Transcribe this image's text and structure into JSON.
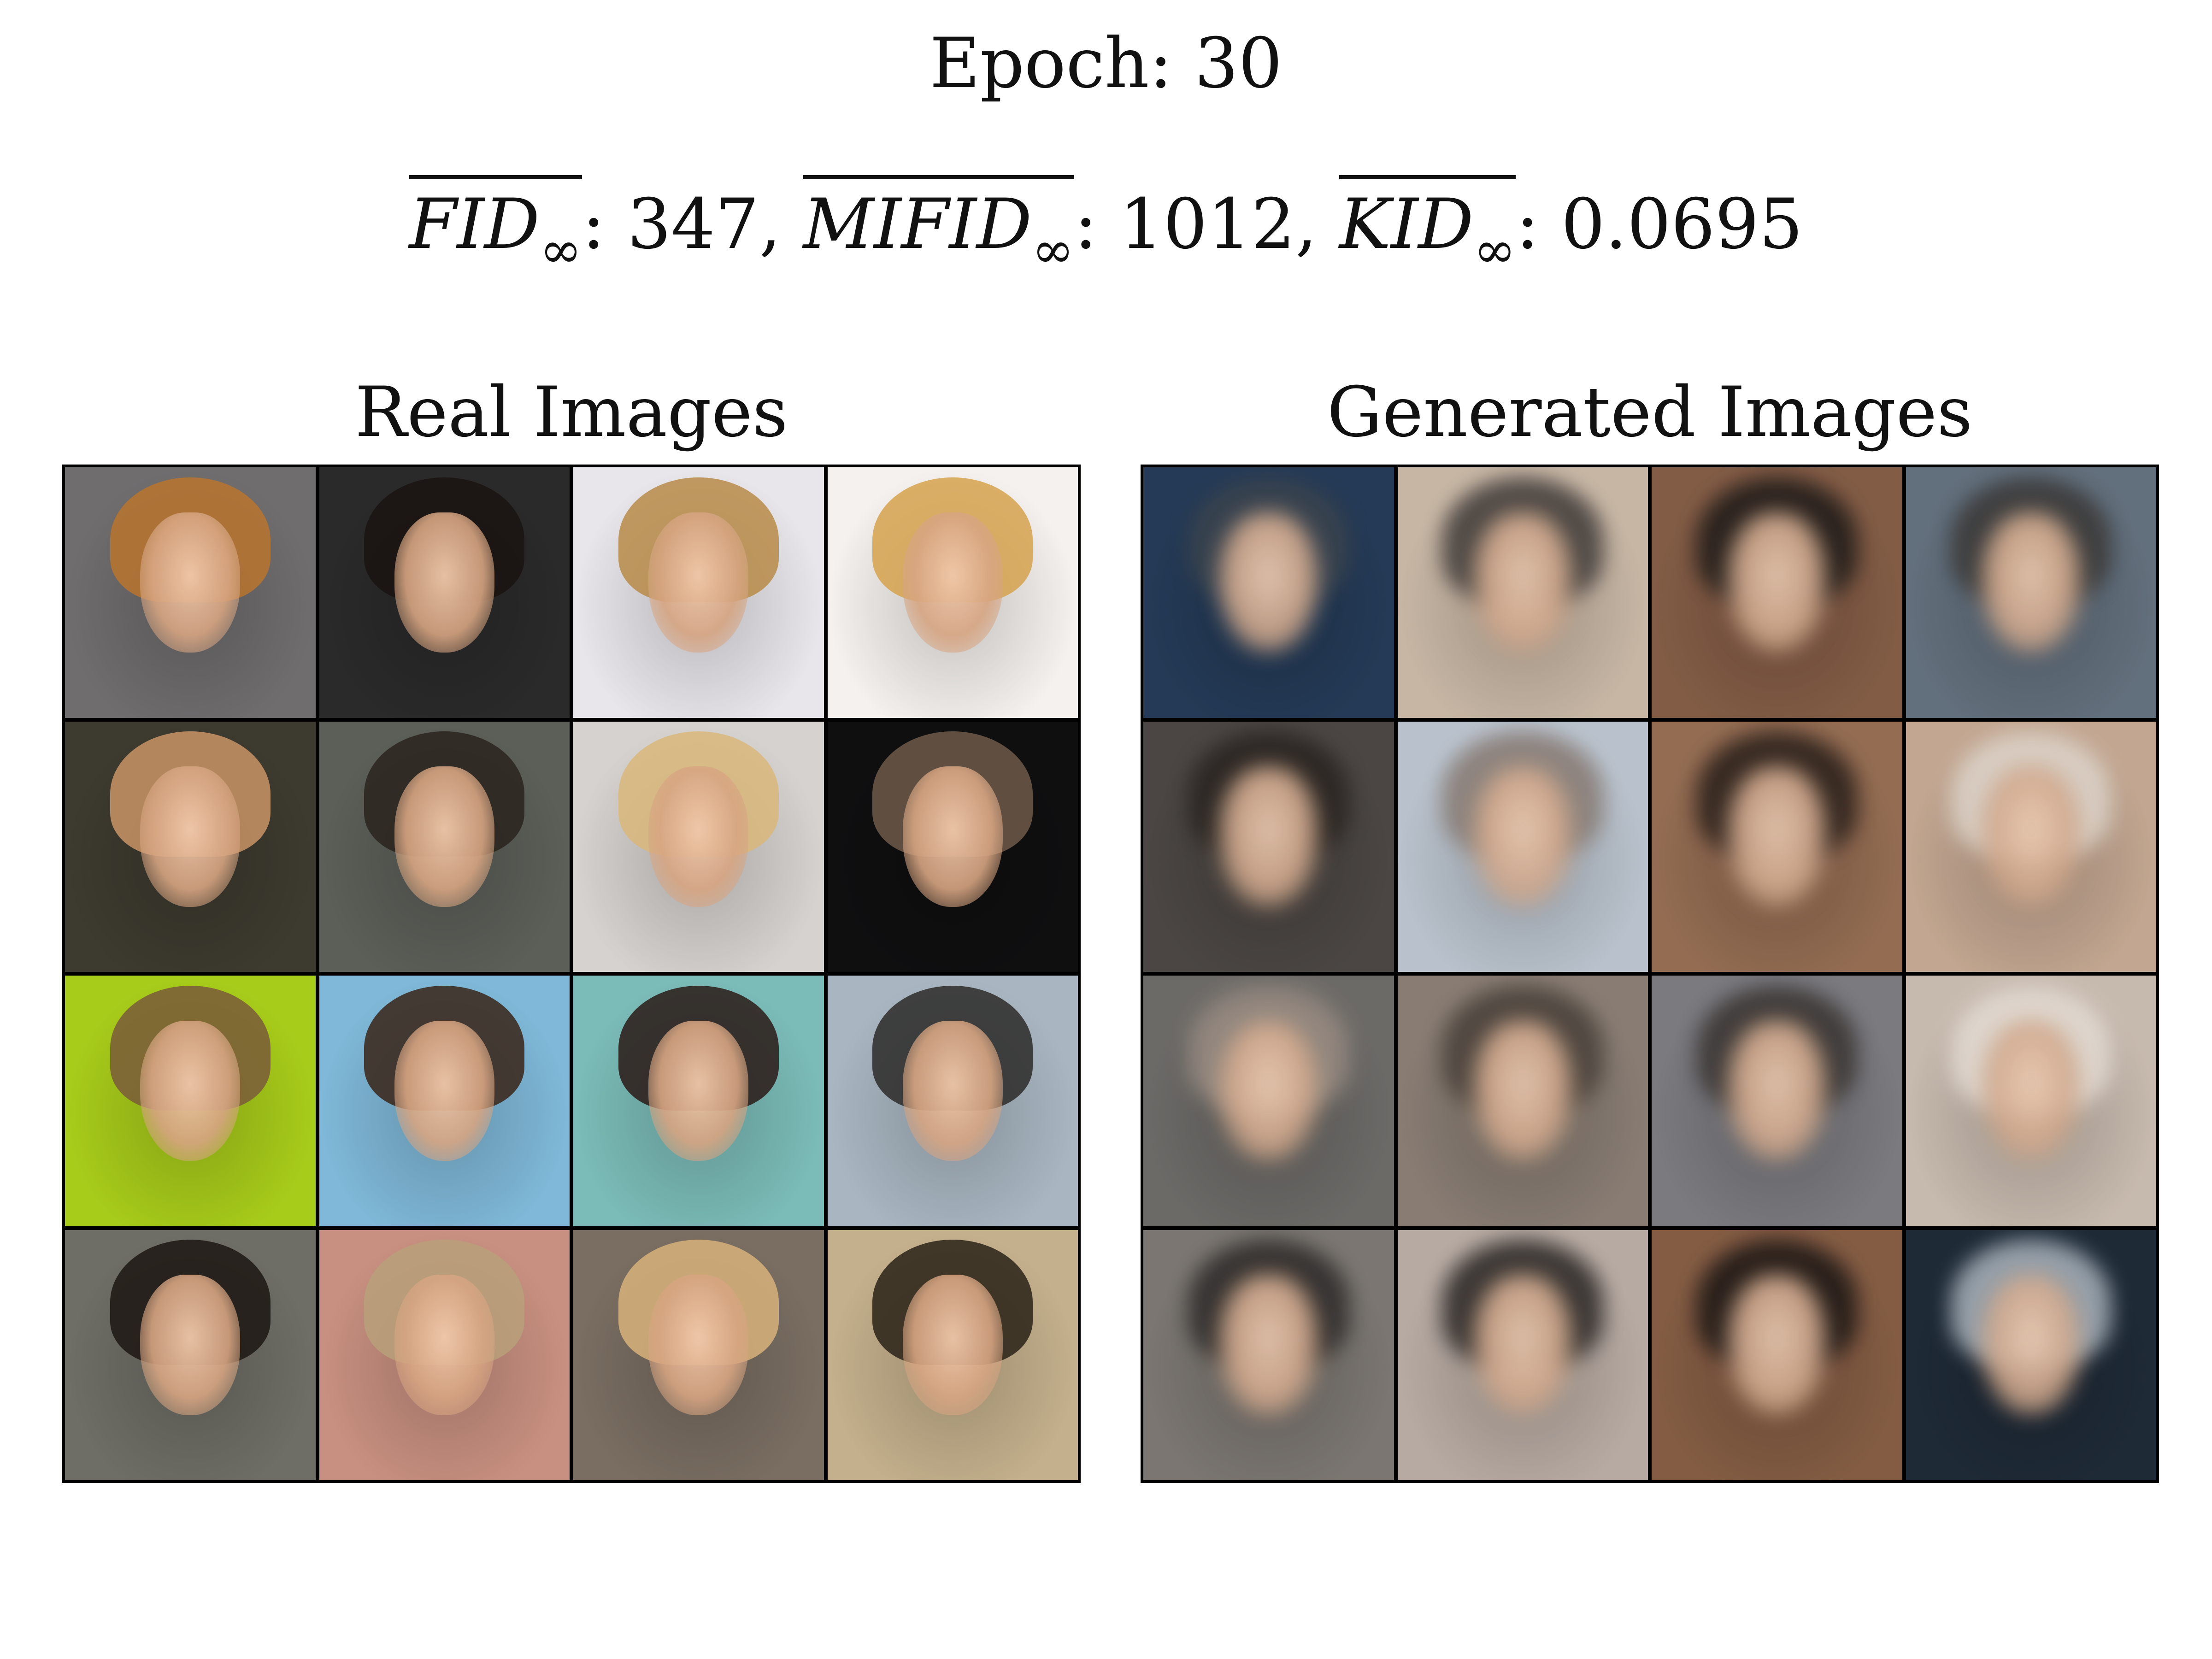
{
  "title": "Epoch: 30",
  "metrics": {
    "fid_name": "FID",
    "fid_value": ": 347,",
    "mifid_name": "MIFID",
    "mifid_value": ": 1012,",
    "kid_name": "KID",
    "kid_value": ": 0.0695",
    "subscript": "∞"
  },
  "panels": {
    "real_title": "Real Images",
    "generated_title": "Generated Images"
  },
  "colors": {
    "real_tiles": [
      {
        "bg": "#6f6d6e",
        "hair": "#b8742e"
      },
      {
        "bg": "#2a2a2a",
        "hair": "#1a1410"
      },
      {
        "bg": "#e8e6ea",
        "hair": "#b78b48"
      },
      {
        "bg": "#f4f1ee",
        "hair": "#d6a24e"
      },
      {
        "bg": "#3d3a2f",
        "hair": "#c99466"
      },
      {
        "bg": "#5c5f58",
        "hair": "#2a231d"
      },
      {
        "bg": "#d6d2cf",
        "hair": "#d9b77a"
      },
      {
        "bg": "#0f0f10",
        "hair": "#6e5a4a"
      },
      {
        "bg": "#a8cc1a",
        "hair": "#7a5a3a"
      },
      {
        "bg": "#7fb8d8",
        "hair": "#3a2418"
      },
      {
        "bg": "#7bbcb8",
        "hair": "#2a1a16"
      },
      {
        "bg": "#a9b6c1",
        "hair": "#2c2a28"
      },
      {
        "bg": "#6e6e66",
        "hair": "#1c1612"
      },
      {
        "bg": "#c89080",
        "hair": "#b9a07a"
      },
      {
        "bg": "#7a6e62",
        "hair": "#d8b27a"
      },
      {
        "bg": "#c4b08c",
        "hair": "#2a2218"
      }
    ],
    "generated_tiles": [
      {
        "bg": "#1f3b5e",
        "hair": "#3a4450"
      },
      {
        "bg": "#cbb59f",
        "hair": "#3e3a38"
      },
      {
        "bg": "#8a5a3e",
        "hair": "#1e1a18"
      },
      {
        "bg": "#5f6f80",
        "hair": "#3a3836"
      },
      {
        "bg": "#4c4642",
        "hair": "#2a2420"
      },
      {
        "bg": "#b7c2cf",
        "hair": "#8a7a70"
      },
      {
        "bg": "#9b6a4a",
        "hair": "#2a1e18"
      },
      {
        "bg": "#c8a58a",
        "hair": "#e0d4c8"
      },
      {
        "bg": "#6d6a66",
        "hair": "#9c8c80"
      },
      {
        "bg": "#8a7c70",
        "hair": "#4a4038"
      },
      {
        "bg": "#7a7a80",
        "hair": "#3a3430"
      },
      {
        "bg": "#c9b9aa",
        "hair": "#e6dcd2"
      },
      {
        "bg": "#7c7670",
        "hair": "#2e2a28"
      },
      {
        "bg": "#b9aaa0",
        "hair": "#2a2624"
      },
      {
        "bg": "#8c5a3c",
        "hair": "#1c1614"
      },
      {
        "bg": "#1c2a3a",
        "hair": "#a8b4c0"
      }
    ]
  }
}
